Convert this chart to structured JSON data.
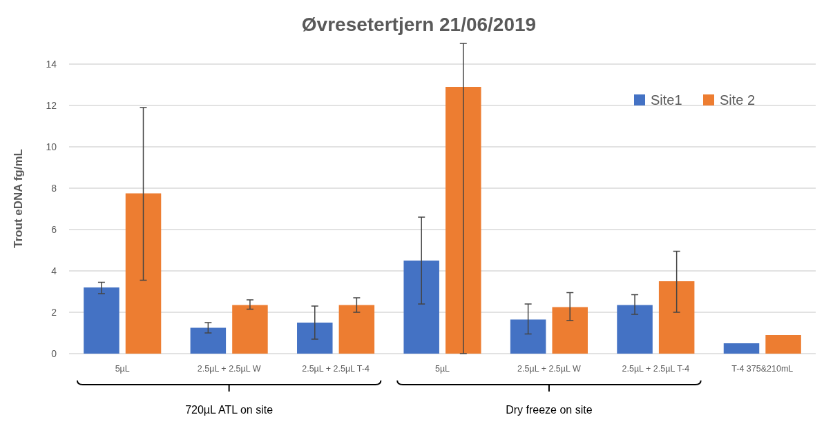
{
  "chart_data": {
    "type": "bar",
    "title": "Øvresetertjern 21/06/2019",
    "ylabel": "Trout eDNA fg/mL",
    "categories": [
      "5µL",
      "2.5µL + 2.5µL W",
      "2.5µL + 2.5µL T-4",
      "5µL",
      "2.5µL + 2.5µL W",
      "2.5µL + 2.5µL T-4",
      "T-4 375&210mL"
    ],
    "series": [
      {
        "name": "Site1",
        "color": "#4472c4",
        "values": [
          3.2,
          1.25,
          1.5,
          4.5,
          1.65,
          2.35,
          0.5
        ],
        "errors": [
          [
            2.9,
            3.45
          ],
          [
            1.0,
            1.5
          ],
          [
            0.7,
            2.3
          ],
          [
            2.4,
            6.6
          ],
          [
            0.95,
            2.4
          ],
          [
            1.9,
            2.85
          ],
          null
        ]
      },
      {
        "name": "Site 2",
        "color": "#ed7d31",
        "values": [
          7.75,
          2.35,
          2.35,
          12.9,
          2.25,
          3.5,
          0.9
        ],
        "errors": [
          [
            3.55,
            11.9
          ],
          [
            2.15,
            2.6
          ],
          [
            2.0,
            2.7
          ],
          [
            0,
            15
          ],
          [
            1.6,
            2.95
          ],
          [
            2.0,
            4.95
          ],
          null
        ]
      }
    ],
    "ylim": [
      0,
      15
    ],
    "yticks": [
      0,
      2,
      4,
      6,
      8,
      10,
      12,
      14
    ],
    "grid": "y",
    "legend": "top right",
    "annotations": [
      "720µL ATL on site",
      "Dry freeze on site"
    ]
  }
}
